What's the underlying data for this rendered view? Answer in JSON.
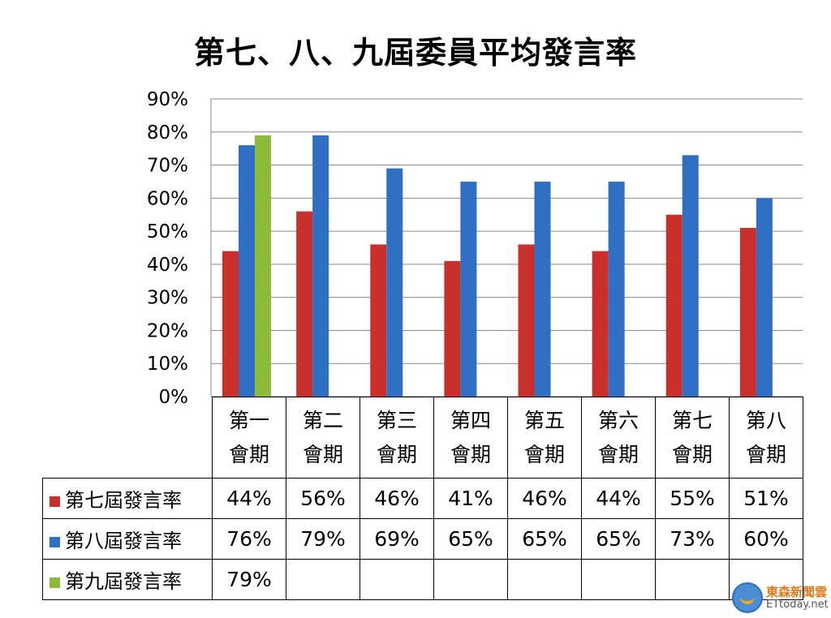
{
  "chart_data": {
    "type": "bar",
    "title": "第七、八、九屆委員平均發言率",
    "categories": [
      [
        "第一",
        "會期"
      ],
      [
        "第二",
        "會期"
      ],
      [
        "第三",
        "會期"
      ],
      [
        "第四",
        "會期"
      ],
      [
        "第五",
        "會期"
      ],
      [
        "第六",
        "會期"
      ],
      [
        "第七",
        "會期"
      ],
      [
        "第八",
        "會期"
      ]
    ],
    "series": [
      {
        "name": "第七屆發言率",
        "color": "#c9302c",
        "values": [
          44,
          56,
          46,
          41,
          46,
          44,
          55,
          51
        ],
        "labels": [
          "44%",
          "56%",
          "46%",
          "41%",
          "46%",
          "44%",
          "55%",
          "51%"
        ]
      },
      {
        "name": "第八屆發言率",
        "color": "#2f6fc4",
        "values": [
          76,
          79,
          69,
          65,
          65,
          65,
          73,
          60
        ],
        "labels": [
          "76%",
          "79%",
          "69%",
          "65%",
          "65%",
          "65%",
          "73%",
          "60%"
        ]
      },
      {
        "name": "第九屆發言率",
        "color": "#8bbb3a",
        "values": [
          79,
          null,
          null,
          null,
          null,
          null,
          null,
          null
        ],
        "labels": [
          "79%",
          "",
          "",
          "",
          "",
          "",
          "",
          ""
        ]
      }
    ],
    "yticks": [
      "0%",
      "10%",
      "20%",
      "30%",
      "40%",
      "50%",
      "60%",
      "70%",
      "80%",
      "90%"
    ],
    "ylim": [
      0,
      90
    ],
    "grid": true,
    "legend": "data-table"
  },
  "logo": {
    "name_zh": "東森新聞雲",
    "name_en": "ETtoday.net"
  }
}
